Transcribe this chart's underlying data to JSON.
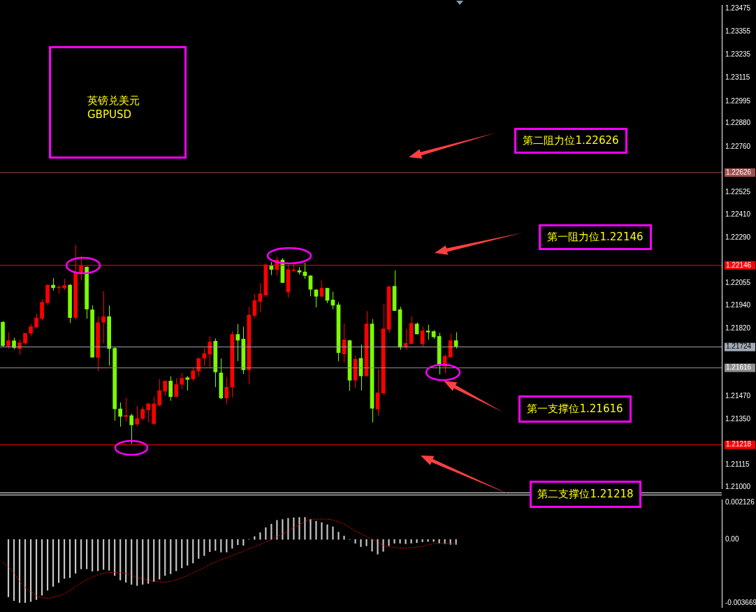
{
  "chart_data": [
    {
      "type": "candlestick",
      "title": "英镑兑美元",
      "subtitle": "GBPUSD",
      "categories": [
        null,
        null,
        null,
        null,
        null,
        null,
        null,
        null,
        null,
        null,
        null,
        null,
        null,
        null,
        null,
        null,
        null,
        null,
        null,
        null,
        null,
        null,
        null,
        null,
        null,
        null,
        null,
        null,
        null,
        null,
        null,
        null,
        null,
        null,
        null,
        null,
        null,
        null,
        null,
        null,
        null,
        null,
        null,
        null,
        null,
        null,
        null,
        null,
        null,
        null,
        null,
        null,
        null,
        null,
        null,
        null,
        null,
        null,
        null,
        null,
        null,
        null,
        null,
        null,
        null,
        null,
        null,
        null,
        null,
        null,
        null,
        null,
        null,
        null,
        null,
        null,
        null,
        null,
        null,
        null,
        null,
        null,
        null,
        null,
        null,
        null,
        null,
        null,
        null,
        null,
        null,
        null,
        null,
        null,
        null,
        null,
        null,
        null,
        null,
        null,
        null,
        null,
        null,
        null,
        null,
        null,
        null,
        null,
        null,
        null,
        null,
        null,
        null,
        null,
        null,
        null,
        null,
        null,
        null,
        null,
        null,
        null,
        null,
        null,
        null,
        null,
        null,
        null,
        null
      ],
      "ohlc": [
        [
          1.21852,
          1.21858,
          1.21724,
          1.21731
        ],
        [
          1.21729,
          1.218,
          1.21716,
          1.21757
        ],
        [
          1.21756,
          1.21772,
          1.21712,
          1.21721
        ],
        [
          1.21716,
          1.21763,
          1.21684,
          1.21746
        ],
        [
          1.21744,
          1.21795,
          1.21734,
          1.21795
        ],
        [
          1.21795,
          1.21843,
          1.21779,
          1.21829
        ],
        [
          1.21826,
          1.21896,
          1.21826,
          1.21874
        ],
        [
          1.21872,
          1.21971,
          1.21862,
          1.21955
        ],
        [
          1.21953,
          1.22048,
          1.2194,
          1.22044
        ],
        [
          1.22044,
          1.2208,
          1.22015,
          1.2203
        ],
        [
          1.2203,
          1.22045,
          1.22,
          1.22032
        ],
        [
          1.22029,
          1.22077,
          1.22018,
          1.22042
        ],
        [
          1.22044,
          1.2205,
          1.21848,
          1.21876
        ],
        [
          1.21876,
          1.22252,
          1.21866,
          1.22111
        ],
        [
          1.22111,
          1.22196,
          1.22068,
          1.22143
        ],
        [
          1.22137,
          1.22141,
          1.2187,
          1.2192
        ],
        [
          1.21916,
          1.21939,
          1.21671,
          1.21671
        ],
        [
          1.2167,
          1.21882,
          1.21599,
          1.2185
        ],
        [
          1.21852,
          1.22013,
          1.21743,
          1.21881
        ],
        [
          1.21881,
          1.21939,
          1.21627,
          1.21716
        ],
        [
          1.21717,
          1.21722,
          1.21343,
          1.21404
        ],
        [
          1.21404,
          1.21437,
          1.21312,
          1.21365
        ],
        [
          1.21364,
          1.21462,
          1.21339,
          1.2137
        ],
        [
          1.21369,
          1.21378,
          1.21224,
          1.21321
        ],
        [
          1.21325,
          1.2142,
          1.21313,
          1.21354
        ],
        [
          1.21354,
          1.21416,
          1.21345,
          1.21402
        ],
        [
          1.21399,
          1.21435,
          1.21335,
          1.2143
        ],
        [
          1.21328,
          1.21467,
          1.21321,
          1.2143
        ],
        [
          1.21423,
          1.21558,
          1.21417,
          1.21498
        ],
        [
          1.21495,
          1.21548,
          1.21473,
          1.21548
        ],
        [
          1.21548,
          1.21573,
          1.21446,
          1.21467
        ],
        [
          1.21467,
          1.21562,
          1.21467,
          1.2153
        ],
        [
          1.21531,
          1.2159,
          1.21506,
          1.21562
        ],
        [
          1.21565,
          1.21573,
          1.21499,
          1.21556
        ],
        [
          1.21559,
          1.21615,
          1.21546,
          1.21601
        ],
        [
          1.21599,
          1.21665,
          1.2157,
          1.21665
        ],
        [
          1.21666,
          1.21718,
          1.21627,
          1.2169
        ],
        [
          1.21687,
          1.21779,
          1.21619,
          1.2175
        ],
        [
          1.21754,
          1.21768,
          1.21517,
          1.21595
        ],
        [
          1.2159,
          1.21665,
          1.21455,
          1.2146
        ],
        [
          1.2146,
          1.21569,
          1.21428,
          1.21516
        ],
        [
          1.21517,
          1.21807,
          1.21463,
          1.21789
        ],
        [
          1.21789,
          1.21843,
          1.21651,
          1.21759
        ],
        [
          1.21765,
          1.21829,
          1.21584,
          1.21606
        ],
        [
          1.21606,
          1.21932,
          1.21531,
          1.21889
        ],
        [
          1.21887,
          1.21999,
          1.21872,
          1.21964
        ],
        [
          1.2196,
          1.22053,
          1.21904,
          1.21999
        ],
        [
          1.21993,
          1.22156,
          1.21983,
          1.22149
        ],
        [
          1.22145,
          1.22163,
          1.22096,
          1.22125
        ],
        [
          1.22124,
          1.22191,
          1.22093,
          1.22174
        ],
        [
          1.22174,
          1.22184,
          1.22057,
          1.22057
        ],
        [
          1.22008,
          1.22149,
          1.21979,
          1.22124
        ],
        [
          1.22119,
          1.22163,
          1.22113,
          1.22123
        ],
        [
          1.22119,
          1.22137,
          1.22099,
          1.22111
        ],
        [
          1.22112,
          1.2216,
          1.22077,
          1.22093
        ],
        [
          1.22092,
          1.22095,
          1.21986,
          1.22022
        ],
        [
          1.22019,
          1.22024,
          1.21929,
          1.21986
        ],
        [
          1.21986,
          1.22068,
          1.21983,
          1.22028
        ],
        [
          1.22028,
          1.22028,
          1.21951,
          1.21965
        ],
        [
          1.21967,
          1.2201,
          1.21919,
          1.2194
        ],
        [
          1.21942,
          1.21956,
          1.21651,
          1.21695
        ],
        [
          1.21688,
          1.21846,
          1.21645,
          1.21761
        ],
        [
          1.21757,
          1.21761,
          1.21497,
          1.21552
        ],
        [
          1.21552,
          1.21679,
          1.21512,
          1.21661
        ],
        [
          1.21665,
          1.21736,
          1.21499,
          1.21574
        ],
        [
          1.21574,
          1.2191,
          1.21574,
          1.21843
        ],
        [
          1.21843,
          1.21868,
          1.21334,
          1.21407
        ],
        [
          1.21403,
          1.21608,
          1.21367,
          1.21487
        ],
        [
          1.21485,
          1.21946,
          1.21474,
          1.21818
        ],
        [
          1.21815,
          1.22039,
          1.21798,
          1.22036
        ],
        [
          1.22038,
          1.2212,
          1.21912,
          1.21912
        ],
        [
          1.21917,
          1.21932,
          1.21709,
          1.21723
        ],
        [
          1.21723,
          1.21818,
          1.21709,
          1.21743
        ],
        [
          1.21741,
          1.21882,
          1.21741,
          1.21846
        ],
        [
          1.21843,
          1.2185,
          1.21791,
          1.21791
        ],
        [
          1.2174,
          1.21829,
          1.21727,
          1.21807
        ],
        [
          1.21807,
          1.21839,
          1.21762,
          1.21801
        ],
        [
          1.21804,
          1.21811,
          1.21766,
          1.21776
        ],
        [
          1.21779,
          1.21797,
          1.21583,
          1.21628
        ],
        [
          1.21624,
          1.21686,
          1.21588,
          1.21676
        ],
        [
          1.21672,
          1.21793,
          1.21672,
          1.21757
        ],
        [
          1.21757,
          1.218,
          1.21716,
          1.21728
        ],
        null,
        null,
        null,
        null,
        null,
        null,
        null,
        null,
        null,
        null,
        null,
        null,
        null,
        null,
        null,
        null,
        null,
        null,
        null,
        null,
        null,
        null,
        null,
        null,
        null,
        null,
        null,
        null,
        null,
        null,
        null,
        null,
        null,
        null,
        null,
        null,
        null,
        null,
        null,
        null,
        null,
        null,
        null,
        null,
        null,
        null,
        null
      ],
      "colors": [
        "#7cfc00",
        "#ff0000",
        "#7cfc00",
        "#ff0000",
        "#ff0000",
        "#ff0000",
        "#ff0000",
        "#ff0000",
        "#ff0000",
        "#7cfc00",
        "#ff0000",
        "#ff0000",
        "#7cfc00",
        "#ff0000",
        "#ff0000",
        "#7cfc00",
        "#7cfc00",
        "#ff0000",
        "#ff0000",
        "#7cfc00",
        "#7cfc00",
        "#7cfc00",
        "#ff0000",
        "#7cfc00",
        "#ff0000",
        "#ff0000",
        "#ff0000",
        "#ff0000",
        "#ff0000",
        "#ff0000",
        "#7cfc00",
        "#ff0000",
        "#ff0000",
        "#7cfc00",
        "#ff0000",
        "#ff0000",
        "#ff0000",
        "#ff0000",
        "#7cfc00",
        "#7cfc00",
        "#ff0000",
        "#ff0000",
        "#7cfc00",
        "#7cfc00",
        "#ff0000",
        "#ff0000",
        "#ff0000",
        "#ff0000",
        "#7cfc00",
        "#ff0000",
        "#7cfc00",
        "#ff0000",
        "#ff0000",
        "#7cfc00",
        "#7cfc00",
        "#7cfc00",
        "#7cfc00",
        "#ff0000",
        "#7cfc00",
        "#7cfc00",
        "#7cfc00",
        "#ff0000",
        "#7cfc00",
        "#ff0000",
        "#7cfc00",
        "#ff0000",
        "#7cfc00",
        "#ff0000",
        "#ff0000",
        "#ff0000",
        "#7cfc00",
        "#7cfc00",
        "#ff0000",
        "#ff0000",
        "#7cfc00",
        "#ff0000",
        "#7cfc00",
        "#7cfc00",
        "#7cfc00",
        "#ff0000",
        "#ff0000",
        "#7cfc00",
        null,
        null,
        null,
        null,
        null,
        null,
        null,
        null,
        null,
        null,
        null,
        null,
        null,
        null,
        null,
        null,
        null,
        null,
        null,
        null,
        null,
        null,
        null,
        null,
        null,
        null,
        null,
        null,
        null,
        null,
        null,
        null,
        null,
        null,
        null,
        null,
        null,
        null,
        null,
        null,
        null,
        null,
        null,
        null,
        null,
        null,
        null
      ],
      "ylim": [
        1.20993,
        1.23493
      ],
      "yticks": [
        1.23475,
        1.23355,
        1.23235,
        1.23115,
        1.22995,
        {
          "value": 1.2288,
          "label": "1.22880"
        },
        {
          "value": 1.2276,
          "label": "1.22760"
        },
        1.22525,
        {
          "value": 1.2241,
          "label": "1.22410"
        },
        {
          "value": 1.2229,
          "label": "1.22290"
        },
        1.22055,
        {
          "value": 1.2194,
          "label": "1.21940"
        },
        {
          "value": 1.2182,
          "label": "1.21820"
        },
        {
          "value": 1.2147,
          "label": "1.21470"
        },
        {
          "value": 1.2135,
          "label": "1.21350"
        },
        1.21115,
        {
          "value": 1.21,
          "label": "1.21000"
        }
      ],
      "ref_lines": [
        {
          "axis": "y",
          "value": 1.22626,
          "label": "1.22626",
          "color": "#a05050"
        },
        {
          "axis": "y",
          "value": 1.22146,
          "label": "1.22146",
          "color": "#ff0000"
        },
        {
          "axis": "y",
          "value": 1.21724,
          "label": "1.21724",
          "color": "#a0a8b4"
        },
        {
          "axis": "y",
          "value": 1.21616,
          "label": "1.21616",
          "color": "#909090"
        },
        {
          "axis": "y",
          "value": 1.21218,
          "label": "1.21218",
          "color": "#ff0000"
        }
      ],
      "annotations": [
        "第二阻力位1.22626",
        "第一阻力位1.22146",
        "第一支撑位1.21616",
        "第二支撑位1.21218"
      ],
      "tick_labels": "y"
    },
    {
      "type": "bar",
      "categories": [
        null,
        null,
        null,
        null,
        null,
        null,
        null,
        null,
        null,
        null,
        null,
        null,
        null,
        null,
        null,
        null,
        null,
        null,
        null,
        null,
        null,
        null,
        null,
        null,
        null,
        null,
        null,
        null,
        null,
        null,
        null,
        null,
        null,
        null,
        null,
        null,
        null,
        null,
        null,
        null,
        null,
        null,
        null,
        null,
        null,
        null,
        null,
        null,
        null,
        null,
        null,
        null,
        null,
        null,
        null,
        null,
        null,
        null,
        null,
        null,
        null,
        null,
        null,
        null,
        null,
        null,
        null,
        null,
        null,
        null,
        null,
        null,
        null,
        null,
        null,
        null,
        null,
        null,
        null,
        null,
        null,
        null,
        null,
        null,
        null,
        null,
        null,
        null,
        null,
        null,
        null,
        null,
        null,
        null,
        null,
        null,
        null,
        null,
        null,
        null,
        null,
        null,
        null,
        null,
        null,
        null,
        null,
        null,
        null,
        null,
        null,
        null,
        null,
        null,
        null,
        null,
        null,
        null,
        null,
        null,
        null,
        null,
        null,
        null,
        null,
        null,
        null,
        null,
        null
      ],
      "series": [
        {
          "type": "bar",
          "color": "#c8c8c8",
          "values": [
            null,
            -0.00331,
            -0.00353,
            -0.00364,
            -0.00364,
            -0.00358,
            -0.00347,
            -0.00322,
            -0.00293,
            -0.00271,
            -0.00249,
            -0.00225,
            -0.0022,
            -0.00195,
            -0.0017,
            -0.0017,
            -0.00183,
            -0.00181,
            -0.00173,
            -0.00178,
            -0.00208,
            -0.00234,
            -0.00247,
            -0.00259,
            -0.00266,
            -0.00259,
            -0.00254,
            -0.00242,
            -0.00229,
            -0.00208,
            -0.00198,
            -0.00181,
            -0.00164,
            -0.00149,
            -0.00136,
            -0.0011,
            -0.00093,
            -0.00071,
            -0.00064,
            -0.00073,
            -0.00073,
            -0.00051,
            -0.00031,
            -0.00034,
            0,
            0.00017,
            0.00039,
            0.00068,
            0.00088,
            0.0011,
            0.00115,
            0.00122,
            0.00125,
            0.00127,
            0.00127,
            0.00115,
            0.00105,
            0.00097,
            0.00085,
            0.00073,
            0.00042,
            0.0002,
            0,
            -0.00022,
            -0.00042,
            -0.00037,
            -0.00068,
            -0.00085,
            -0.00069,
            -0.00036,
            -0.00022,
            -0.00022,
            -0.00025,
            -0.00022,
            -0.00019,
            -0.00014,
            -0.00012,
            -0.00012,
            -0.00022,
            -0.00025,
            -0.00029,
            -0.00029,
            null,
            null,
            null,
            null,
            null,
            null,
            null,
            null,
            null,
            null,
            null,
            null,
            null,
            null,
            null,
            null,
            null,
            null,
            null,
            null,
            null,
            null,
            null,
            null,
            null,
            null,
            null,
            null,
            null,
            null,
            null,
            null,
            null,
            null,
            null,
            null,
            null,
            null,
            null,
            null,
            null,
            null,
            null,
            null,
            null,
            null,
            null
          ]
        },
        {
          "type": "line",
          "color": "#ff0000",
          "line_style": "dotted",
          "marker": "none",
          "values": [
            -0.00132,
            -0.00158,
            -0.00195,
            -0.00242,
            -0.00276,
            -0.00302,
            -0.00324,
            -0.00336,
            -0.00339,
            -0.00334,
            -0.00325,
            -0.00314,
            -0.00293,
            -0.00273,
            -0.00251,
            -0.00232,
            -0.00217,
            -0.00205,
            -0.00195,
            -0.0019,
            -0.0019,
            -0.00192,
            -0.00195,
            -0.00208,
            -0.0022,
            -0.00225,
            -0.00234,
            -0.00242,
            -0.00246,
            -0.00246,
            -0.00242,
            -0.00232,
            -0.00222,
            -0.00208,
            -0.00192,
            -0.00178,
            -0.00161,
            -0.00144,
            -0.00131,
            -0.00117,
            -0.00105,
            -0.00093,
            -0.0008,
            -0.00068,
            -0.00053,
            -0.00042,
            -0.00029,
            -0.00014,
            0,
            0.00014,
            0.00032,
            0.00049,
            0.00068,
            0.00086,
            0.00103,
            0.00114,
            0.00117,
            0.00117,
            0.00117,
            0.00112,
            0.00102,
            0.00088,
            0.00069,
            0.00049,
            0.00034,
            0.00017,
            0,
            -0.00015,
            -0.00034,
            -0.00042,
            -0.00047,
            -0.00049,
            -0.00051,
            -0.00047,
            -0.00044,
            -0.00041,
            -0.00031,
            -0.00024,
            -0.00022,
            -0.00022,
            -0.00024,
            -0.00024,
            null,
            null,
            null,
            null,
            null,
            null,
            null,
            null,
            null,
            null,
            null,
            null,
            null,
            null,
            null,
            null,
            null,
            null,
            null,
            null,
            null,
            null,
            null,
            null,
            null,
            null,
            null,
            null,
            null,
            null,
            null,
            null,
            null,
            null,
            null,
            null,
            null,
            null,
            null,
            null,
            null,
            null,
            null,
            null,
            null,
            null,
            null
          ]
        }
      ],
      "ylim": [
        -0.0039,
        0.0023
      ],
      "yticks": [
        0.002126,
        {
          "value": 0,
          "label": "0.00"
        },
        -0.003669
      ],
      "tick_labels": "y"
    }
  ]
}
